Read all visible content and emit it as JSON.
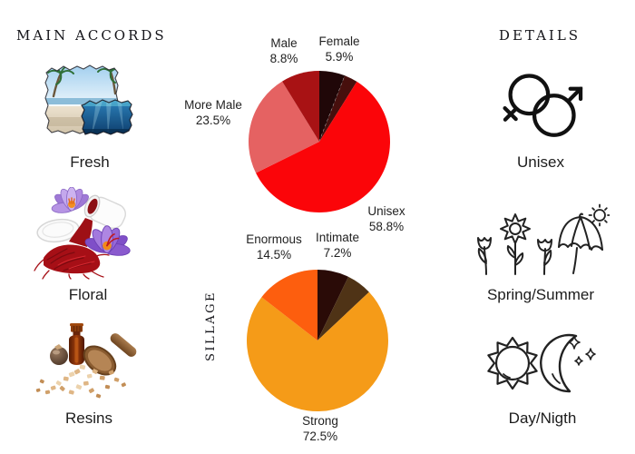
{
  "accords": {
    "heading": "MAIN ACCORDS",
    "items": [
      {
        "label": "Fresh",
        "image": "beach-and-sea-photo"
      },
      {
        "label": "Floral",
        "image": "crocus-flowers-and-saffron-photo"
      },
      {
        "label": "Resins",
        "image": "resin-bottle-and-wooden-scoop-photo"
      }
    ]
  },
  "details": {
    "heading": "DETAILS",
    "items": [
      {
        "label": "Unisex",
        "icon": "unisex-gender-symbols-icon"
      },
      {
        "label": "Spring/Summer",
        "icon": "flowers-umbrella-sun-icon"
      },
      {
        "label": "Day/Nigth",
        "icon": "sun-and-moon-icon"
      }
    ]
  },
  "chart_data": [
    {
      "type": "pie",
      "name": "gender-audience-pie",
      "title": "",
      "start_angle": "12-oclock",
      "direction": "clockwise",
      "slices": [
        {
          "label": "Female",
          "pct": "5.9%",
          "value": 5.9,
          "color": "#200708",
          "dashed_divider": true
        },
        {
          "label": "",
          "pct": "",
          "value": 3.0,
          "color": "#470f0d"
        },
        {
          "label": "Unisex",
          "pct": "58.8%",
          "value": 58.8,
          "color": "#fb0509"
        },
        {
          "label": "More Male",
          "pct": "23.5%",
          "value": 23.5,
          "color": "#e56262"
        },
        {
          "label": "Male",
          "pct": "8.8%",
          "value": 8.8,
          "color": "#a81214"
        }
      ]
    },
    {
      "type": "pie",
      "name": "sillage-pie",
      "title": "SILLAGE",
      "start_angle": "12-oclock",
      "direction": "clockwise",
      "slices": [
        {
          "label": "Intimate",
          "pct": "7.2%",
          "value": 7.2,
          "color": "#2a0b07"
        },
        {
          "label": "",
          "pct": "",
          "value": 5.8,
          "color": "#4f3316"
        },
        {
          "label": "Strong",
          "pct": "72.5%",
          "value": 72.5,
          "color": "#f59b18"
        },
        {
          "label": "Enormous",
          "pct": "14.5%",
          "value": 14.5,
          "color": "#fd5e0e"
        }
      ]
    }
  ]
}
